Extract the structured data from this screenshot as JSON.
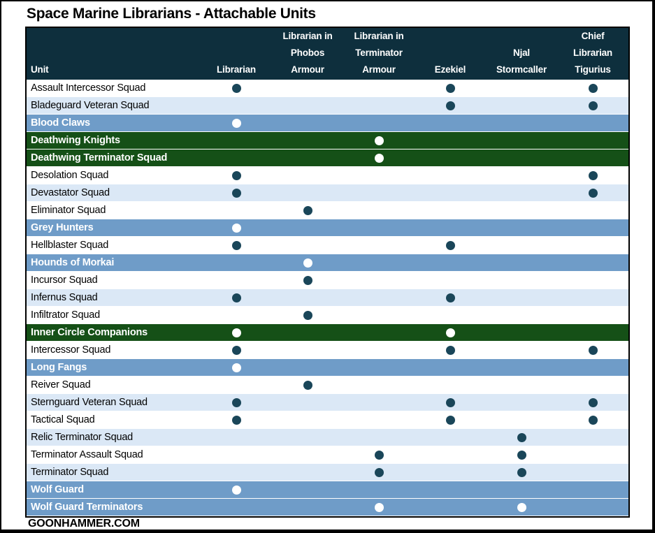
{
  "title": "Space Marine Librarians - Attachable Units",
  "footer": "GOONHAMMER.COM",
  "colors": {
    "header_bg": "#0e2f3d",
    "dot": "#1a4659",
    "row_alt": "#dbe8f6",
    "row_wolves": "#6f9cc8",
    "row_angels": "#155017",
    "dot_on_color": "#ffffff",
    "border": "#000000"
  },
  "chart_data": {
    "type": "table",
    "title": "Space Marine Librarians - Attachable Units",
    "columns": [
      "Unit",
      "Librarian",
      "Librarian in Phobos Armour",
      "Librarian in Terminator Armour",
      "Ezekiel",
      "Njal Stormcaller",
      "Chief Librarian Tigurius"
    ],
    "column_keys": [
      "unit",
      "librarian",
      "phobos",
      "terminator",
      "ezekiel",
      "njal",
      "tigurius"
    ],
    "column_header_lines": [
      [
        "Unit"
      ],
      [
        "Librarian"
      ],
      [
        "Librarian in",
        "Phobos",
        "Armour"
      ],
      [
        "Librarian in",
        "Terminator",
        "Armour"
      ],
      [
        "Ezekiel"
      ],
      [
        "Njal",
        "Stormcaller"
      ],
      [
        "Chief",
        "Librarian",
        "Tigurius"
      ]
    ],
    "mark_legend": "1 = librarian can attach to unit (filled dot shown)",
    "rows": [
      {
        "unit": "Assault Intercessor Squad",
        "group": "plain",
        "marks": [
          1,
          0,
          0,
          1,
          0,
          1
        ]
      },
      {
        "unit": "Bladeguard Veteran Squad",
        "group": "alt",
        "marks": [
          0,
          0,
          0,
          1,
          0,
          1
        ]
      },
      {
        "unit": "Blood Claws",
        "group": "wolves",
        "marks": [
          1,
          0,
          0,
          0,
          0,
          0
        ]
      },
      {
        "unit": "Deathwing Knights",
        "group": "angels",
        "marks": [
          0,
          0,
          1,
          0,
          0,
          0
        ]
      },
      {
        "unit": "Deathwing Terminator Squad",
        "group": "angels",
        "marks": [
          0,
          0,
          1,
          0,
          0,
          0
        ]
      },
      {
        "unit": "Desolation Squad",
        "group": "plain",
        "marks": [
          1,
          0,
          0,
          0,
          0,
          1
        ]
      },
      {
        "unit": "Devastator Squad",
        "group": "alt",
        "marks": [
          1,
          0,
          0,
          0,
          0,
          1
        ]
      },
      {
        "unit": "Eliminator Squad",
        "group": "plain",
        "marks": [
          0,
          1,
          0,
          0,
          0,
          0
        ]
      },
      {
        "unit": "Grey Hunters",
        "group": "wolves",
        "marks": [
          1,
          0,
          0,
          0,
          0,
          0
        ]
      },
      {
        "unit": "Hellblaster Squad",
        "group": "plain",
        "marks": [
          1,
          0,
          0,
          1,
          0,
          0
        ]
      },
      {
        "unit": "Hounds of Morkai",
        "group": "wolves",
        "marks": [
          0,
          1,
          0,
          0,
          0,
          0
        ]
      },
      {
        "unit": "Incursor Squad",
        "group": "plain",
        "marks": [
          0,
          1,
          0,
          0,
          0,
          0
        ]
      },
      {
        "unit": "Infernus Squad",
        "group": "alt",
        "marks": [
          1,
          0,
          0,
          1,
          0,
          0
        ]
      },
      {
        "unit": "Infiltrator Squad",
        "group": "plain",
        "marks": [
          0,
          1,
          0,
          0,
          0,
          0
        ]
      },
      {
        "unit": "Inner Circle Companions",
        "group": "angels",
        "marks": [
          1,
          0,
          0,
          1,
          0,
          0
        ]
      },
      {
        "unit": "Intercessor Squad",
        "group": "plain",
        "marks": [
          1,
          0,
          0,
          1,
          0,
          1
        ]
      },
      {
        "unit": "Long Fangs",
        "group": "wolves",
        "marks": [
          1,
          0,
          0,
          0,
          0,
          0
        ]
      },
      {
        "unit": "Reiver Squad",
        "group": "plain",
        "marks": [
          0,
          1,
          0,
          0,
          0,
          0
        ]
      },
      {
        "unit": "Sternguard Veteran Squad",
        "group": "alt",
        "marks": [
          1,
          0,
          0,
          1,
          0,
          1
        ]
      },
      {
        "unit": "Tactical Squad",
        "group": "plain",
        "marks": [
          1,
          0,
          0,
          1,
          0,
          1
        ]
      },
      {
        "unit": "Relic Terminator Squad",
        "group": "alt",
        "marks": [
          0,
          0,
          0,
          0,
          1,
          0
        ]
      },
      {
        "unit": "Terminator Assault Squad",
        "group": "plain",
        "marks": [
          0,
          0,
          1,
          0,
          1,
          0
        ]
      },
      {
        "unit": "Terminator Squad",
        "group": "alt",
        "marks": [
          0,
          0,
          1,
          0,
          1,
          0
        ]
      },
      {
        "unit": "Wolf Guard",
        "group": "wolves",
        "marks": [
          1,
          0,
          0,
          0,
          0,
          0
        ]
      },
      {
        "unit": "Wolf Guard Terminators",
        "group": "wolves",
        "marks": [
          0,
          0,
          1,
          0,
          1,
          0
        ]
      }
    ]
  }
}
